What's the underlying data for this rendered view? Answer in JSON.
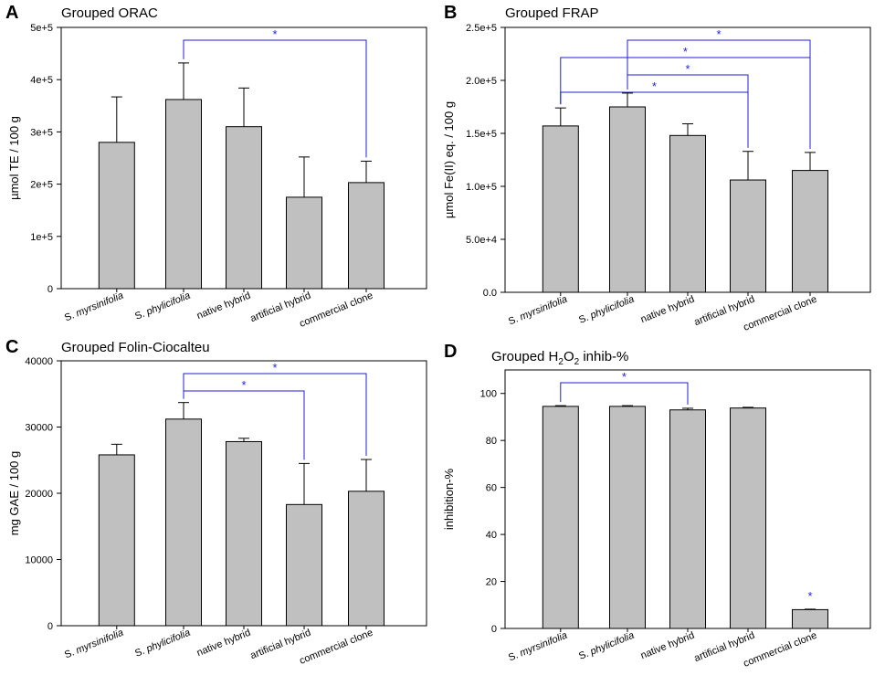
{
  "chart_data": [
    {
      "type": "bar",
      "panel": "A",
      "title": "Grouped ORAC",
      "ylabel": "µmol TE / 100 g",
      "xlabel": "",
      "categories": [
        "S. myrsinifolia",
        "S. phylicifolia",
        "native hybrid",
        "artificial hybrid",
        "commercial clone"
      ],
      "values": [
        280000,
        362000,
        310000,
        175000,
        203000
      ],
      "errors": [
        87000,
        70000,
        74000,
        77000,
        41000
      ],
      "ylim": [
        0,
        500000
      ],
      "yticks": [
        0,
        100000,
        200000,
        300000,
        400000,
        500000
      ],
      "ytick_labels": [
        "0",
        "1e+5",
        "2e+5",
        "3e+5",
        "4e+5",
        "5e+5"
      ],
      "significance": [
        {
          "from": 1,
          "to": 4,
          "label": "*"
        }
      ]
    },
    {
      "type": "bar",
      "panel": "B",
      "title": "Grouped FRAP",
      "ylabel": "µmol Fe(II) eq. / 100 g",
      "xlabel": "",
      "categories": [
        "S. myrsinifolia",
        "S. phylicifolia",
        "native hybrid",
        "artificial hybrid",
        "commercial clone"
      ],
      "values": [
        157000,
        175000,
        148000,
        106000,
        115000
      ],
      "errors": [
        17000,
        13000,
        11000,
        27000,
        17000
      ],
      "ylim": [
        0,
        250000
      ],
      "yticks": [
        0,
        50000,
        100000,
        150000,
        200000,
        250000
      ],
      "ytick_labels": [
        "0.0",
        "5.0e+4",
        "1.0e+5",
        "1.5e+5",
        "2.0e+5",
        "2.5e+5"
      ],
      "significance": [
        {
          "from": 1,
          "to": 4,
          "label": "*"
        },
        {
          "from": 0,
          "to": 4,
          "label": "*"
        },
        {
          "from": 1,
          "to": 3,
          "label": "*"
        },
        {
          "from": 0,
          "to": 3,
          "label": "*"
        }
      ]
    },
    {
      "type": "bar",
      "panel": "C",
      "title": "Grouped Folin-Ciocalteu",
      "ylabel": "mg GAE / 100 g",
      "xlabel": "",
      "categories": [
        "S. myrsinifolia",
        "S. phylicifolia",
        "native hybrid",
        "artificial hybrid",
        "commercial clone"
      ],
      "values": [
        25800,
        31200,
        27800,
        18300,
        20300
      ],
      "errors": [
        1600,
        2500,
        500,
        6200,
        4800
      ],
      "ylim": [
        0,
        40000
      ],
      "yticks": [
        0,
        10000,
        20000,
        30000,
        40000
      ],
      "ytick_labels": [
        "0",
        "10000",
        "20000",
        "30000",
        "40000"
      ],
      "significance": [
        {
          "from": 1,
          "to": 4,
          "label": "*"
        },
        {
          "from": 1,
          "to": 3,
          "label": "*"
        }
      ]
    },
    {
      "type": "bar",
      "panel": "D",
      "title": "Grouped H2O2 inhib-%",
      "title_parts": {
        "pre": "Grouped H",
        "sub1": "2",
        "mid": "O",
        "sub2": "2",
        "post": " inhib-%"
      },
      "ylabel": "inhibition-%",
      "xlabel": "",
      "categories": [
        "S. myrsinifolia",
        "S. phylicifolia",
        "native hybrid",
        "artificial hybrid",
        "commercial clone"
      ],
      "values": [
        94.5,
        94.5,
        93.0,
        93.8,
        8.0
      ],
      "errors": [
        0.3,
        0.3,
        0.7,
        0.3,
        0.2
      ],
      "ylim": [
        0,
        110
      ],
      "yticks": [
        0,
        20,
        40,
        60,
        80,
        100
      ],
      "ytick_labels": [
        "0",
        "20",
        "40",
        "60",
        "80",
        "100"
      ],
      "significance": [
        {
          "from": 0,
          "to": 2,
          "label": "*"
        }
      ],
      "single_star": [
        {
          "index": 4,
          "label": "*"
        }
      ]
    }
  ],
  "colors": {
    "bar": "#c0c0c0",
    "sig": "#1f1fd6",
    "axis": "#000000"
  }
}
